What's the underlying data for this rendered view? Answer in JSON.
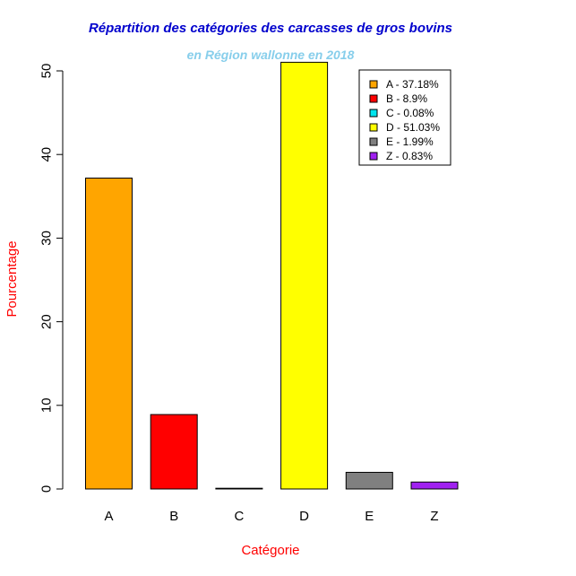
{
  "chart_data": {
    "type": "bar",
    "title": "Répartition des catégories des carcasses de gros bovins",
    "subtitle": "en Région wallonne en 2018",
    "xlabel": "Catégorie",
    "ylabel": "Pourcentage",
    "ylim": [
      0,
      50
    ],
    "yticks": [
      0,
      10,
      20,
      30,
      40,
      50
    ],
    "categories": [
      "A",
      "B",
      "C",
      "D",
      "E",
      "Z"
    ],
    "values": [
      37.18,
      8.9,
      0.08,
      51.03,
      1.99,
      0.83
    ],
    "colors": [
      "#FFA500",
      "#FF0000",
      "#00E5EE",
      "#FFFF00",
      "#808080",
      "#A020F0"
    ],
    "grid": false,
    "legend": {
      "placement": "top-right",
      "entries": [
        "A - 37.18%",
        "B - 8.9%",
        "C - 0.08%",
        "D - 51.03%",
        "E - 1.99%",
        "Z - 0.83%"
      ]
    },
    "title_color": "#0000CD",
    "subtitle_color": "#87CEEB",
    "axis_label_color": "#FF0000"
  }
}
